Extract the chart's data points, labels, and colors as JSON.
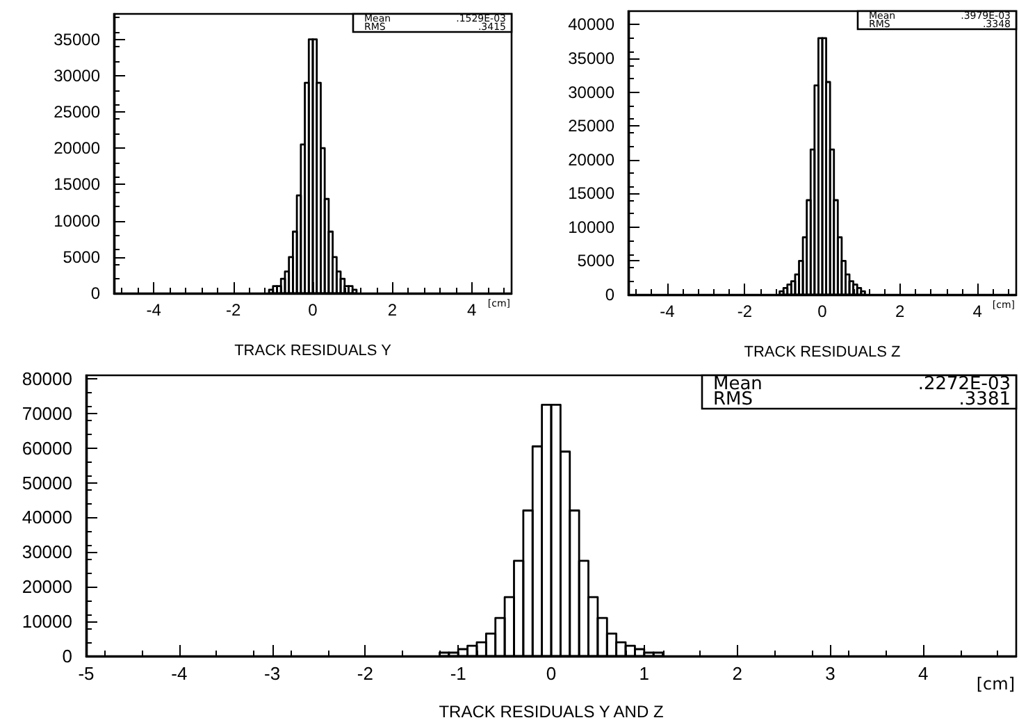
{
  "chart_data": [
    {
      "type": "histogram",
      "xlabel": "TRACK RESIDUALS Y",
      "color": "#000000",
      "bins": [
        -1.1,
        -1.0,
        -0.9,
        -0.8,
        -0.7,
        -0.6,
        -0.5,
        -0.4,
        -0.3,
        -0.2,
        -0.1,
        0.0,
        0.1,
        0.2,
        0.3,
        0.4,
        0.5,
        0.6,
        0.7,
        0.8,
        0.9,
        1.0,
        1.1
      ],
      "values": [
        500,
        1000,
        1000,
        2000,
        3000,
        5000,
        8500,
        13500,
        20500,
        29000,
        35000,
        35000,
        29000,
        20000,
        13000,
        8500,
        5000,
        3000,
        2000,
        1000,
        1000,
        500
      ],
      "xlim": [
        -5,
        5
      ],
      "xticks": [
        -4,
        -2,
        0,
        2,
        4
      ],
      "ylim": [
        0,
        38500
      ],
      "yticks": [
        0,
        5000,
        10000,
        15000,
        20000,
        25000,
        30000,
        35000
      ],
      "annotations": [
        "Mean",
        ".1529E-03",
        "RMS",
        ".3415",
        "[cm]"
      ]
    },
    {
      "type": "histogram",
      "xlabel": "TRACK RESIDUALS Z",
      "color": "#000000",
      "bins": [
        -1.1,
        -1.0,
        -0.9,
        -0.8,
        -0.7,
        -0.6,
        -0.5,
        -0.4,
        -0.3,
        -0.2,
        -0.1,
        0.0,
        0.1,
        0.2,
        0.3,
        0.4,
        0.5,
        0.6,
        0.7,
        0.8,
        0.9,
        1.0,
        1.1
      ],
      "values": [
        500,
        1000,
        1500,
        2000,
        3000,
        5000,
        8500,
        14000,
        21500,
        31000,
        38000,
        38000,
        31500,
        21500,
        14000,
        8500,
        5000,
        3000,
        2000,
        1500,
        1000,
        500
      ],
      "xlim": [
        -5,
        5
      ],
      "xticks": [
        -4,
        -2,
        0,
        2,
        4
      ],
      "ylim": [
        0,
        42000
      ],
      "yticks": [
        0,
        5000,
        10000,
        15000,
        20000,
        25000,
        30000,
        35000,
        40000
      ],
      "annotations": [
        "Mean",
        ".3979E-03",
        "RMS",
        ".3348",
        "[cm]"
      ]
    },
    {
      "type": "histogram",
      "xlabel": "TRACK RESIDUALS Y AND Z",
      "color": "#000000",
      "bins": [
        -1.2,
        -1.1,
        -1.0,
        -0.9,
        -0.8,
        -0.7,
        -0.6,
        -0.5,
        -0.4,
        -0.3,
        -0.2,
        -0.1,
        0.0,
        0.1,
        0.2,
        0.3,
        0.4,
        0.5,
        0.6,
        0.7,
        0.8,
        0.9,
        1.0,
        1.1,
        1.2
      ],
      "values": [
        1000,
        1000,
        2000,
        3000,
        4000,
        6500,
        11000,
        17000,
        27500,
        42000,
        60500,
        72500,
        72500,
        59000,
        42000,
        27500,
        17000,
        11000,
        6500,
        4000,
        3000,
        2000,
        1000,
        1000
      ],
      "xlim": [
        -5,
        5
      ],
      "xticks": [
        -5,
        -4,
        -3,
        -2,
        -1,
        0,
        1,
        2,
        3,
        4
      ],
      "ylim": [
        0,
        81000
      ],
      "yticks": [
        0,
        10000,
        20000,
        30000,
        40000,
        50000,
        60000,
        70000,
        80000
      ],
      "annotations": [
        "Mean",
        ".2272E-03",
        "RMS",
        ".3381",
        "[cm]"
      ]
    }
  ]
}
